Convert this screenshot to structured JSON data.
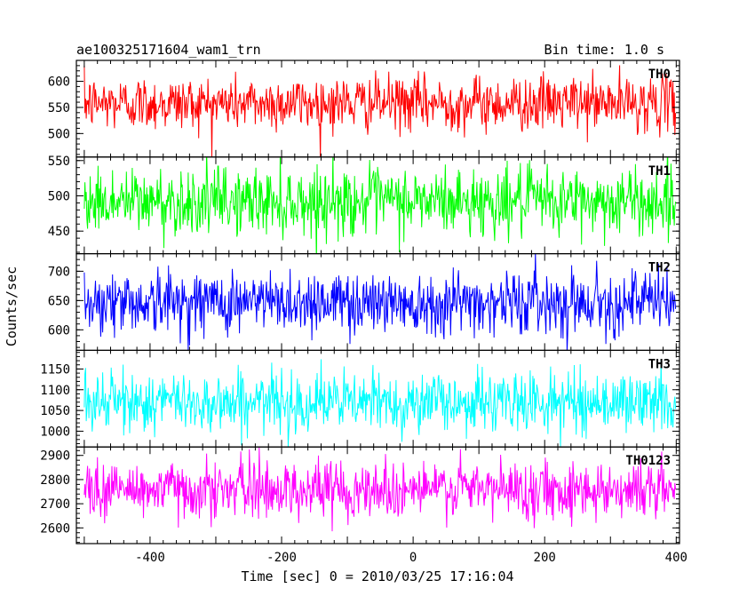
{
  "chart_data": {
    "type": "line",
    "title": "ae100325171604_wam1_trn",
    "subtitle": "Bin time: 1.0 s",
    "xlabel": "Time [sec] 0 = 2010/03/25 17:16:04",
    "ylabel": "Counts/sec",
    "xlim": [
      -512,
      405
    ],
    "x_range": [
      -500,
      399
    ],
    "x_ticks": [
      -400,
      -200,
      0,
      200,
      400
    ],
    "grid": false,
    "panels": [
      {
        "name": "TH0",
        "color": "#ff0000",
        "ylim": [
          455,
          640
        ],
        "yticks": [
          500,
          550,
          600
        ],
        "mean": 558,
        "noise_sigma": 26
      },
      {
        "name": "TH1",
        "color": "#00ff00",
        "ylim": [
          418,
          555
        ],
        "yticks": [
          450,
          500,
          550
        ],
        "mean": 492,
        "noise_sigma": 24
      },
      {
        "name": "TH2",
        "color": "#0000ff",
        "ylim": [
          565,
          730
        ],
        "yticks": [
          600,
          650,
          700
        ],
        "mean": 648,
        "noise_sigma": 27
      },
      {
        "name": "TH3",
        "color": "#00ffff",
        "ylim": [
          962,
          1195
        ],
        "yticks": [
          1000,
          1050,
          1100,
          1150
        ],
        "mean": 1070,
        "noise_sigma": 36
      },
      {
        "name": "TH0123",
        "color": "#ff00ff",
        "ylim": [
          2535,
          2935
        ],
        "yticks": [
          2600,
          2700,
          2800,
          2900
        ],
        "mean": 2760,
        "noise_sigma": 60
      }
    ]
  }
}
